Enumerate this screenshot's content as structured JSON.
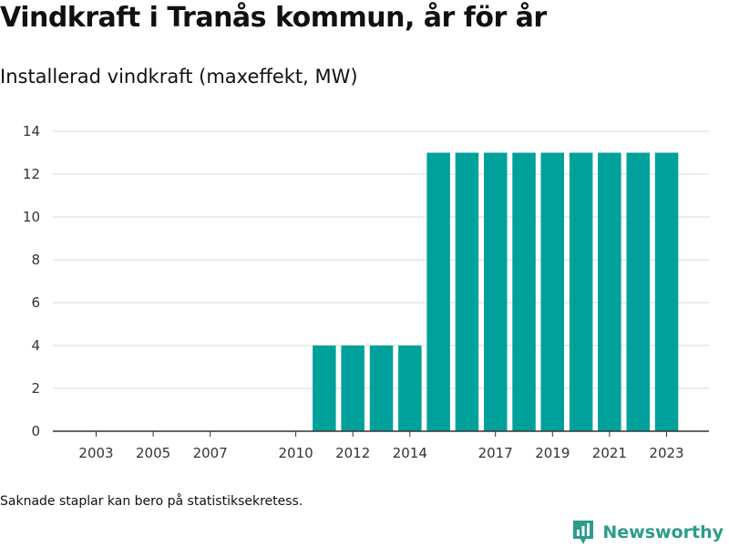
{
  "chart_data": {
    "type": "bar",
    "title": "Vindkraft i Tranås kommun, år för år",
    "subtitle": "Installerad vindkraft (maxeffekt, MW)",
    "categories": [
      "2003",
      "2004",
      "2005",
      "2006",
      "2007",
      "2008",
      "2009",
      "2010",
      "2011",
      "2012",
      "2013",
      "2014",
      "2015",
      "2016",
      "2017",
      "2018",
      "2019",
      "2020",
      "2021",
      "2022",
      "2023"
    ],
    "x_tick_labels": [
      "2003",
      "2005",
      "2007",
      "2010",
      "2012",
      "2014",
      "2017",
      "2019",
      "2021",
      "2023"
    ],
    "values": [
      0,
      0,
      0,
      0,
      0,
      0,
      0,
      0,
      4,
      4,
      4,
      4,
      13,
      13,
      13,
      13,
      13,
      13,
      13,
      13,
      13
    ],
    "y_ticks": [
      0,
      2,
      4,
      6,
      8,
      10,
      12,
      14
    ],
    "ylim": [
      0,
      14
    ],
    "grid": true,
    "bar_color": "#00a19a",
    "xlabel": "",
    "ylabel": ""
  },
  "footnote": "Saknade staplar kan bero på statistiksekretess.",
  "brand": {
    "name": "Newsworthy",
    "color": "#2b9c8c"
  }
}
